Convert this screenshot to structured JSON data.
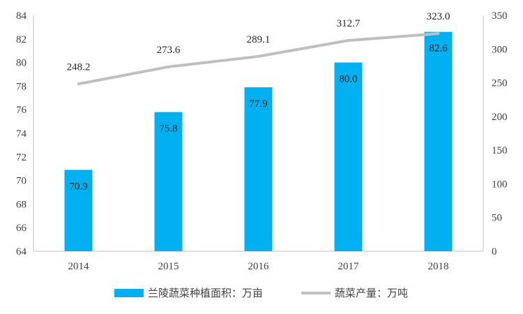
{
  "chart_data": {
    "type": "bar",
    "categories": [
      "2014",
      "2015",
      "2016",
      "2017",
      "2018"
    ],
    "series": [
      {
        "name": "兰陵蔬菜种植面积：万亩",
        "type": "bar",
        "axis": "left",
        "values": [
          70.9,
          75.8,
          77.9,
          80.0,
          82.6
        ],
        "labels": [
          "70.9",
          "75.8",
          "77.9",
          "80.0",
          "82.6"
        ],
        "color": "#00B0F0"
      },
      {
        "name": "蔬菜产量：万吨",
        "type": "line",
        "axis": "right",
        "values": [
          248.2,
          273.6,
          289.1,
          312.7,
          323.0
        ],
        "labels": [
          "248.2",
          "273.6",
          "289.1",
          "312.7",
          "323.0"
        ],
        "color": "#BFBFBF"
      }
    ],
    "y_left": {
      "min": 64,
      "max": 84,
      "ticks": [
        "64",
        "66",
        "68",
        "70",
        "72",
        "74",
        "76",
        "78",
        "80",
        "82",
        "84"
      ]
    },
    "y_right": {
      "min": 0,
      "max": 350,
      "ticks": [
        "0",
        "50",
        "100",
        "150",
        "200",
        "250",
        "300",
        "350"
      ]
    },
    "grid": false,
    "legend_position": "bottom"
  }
}
